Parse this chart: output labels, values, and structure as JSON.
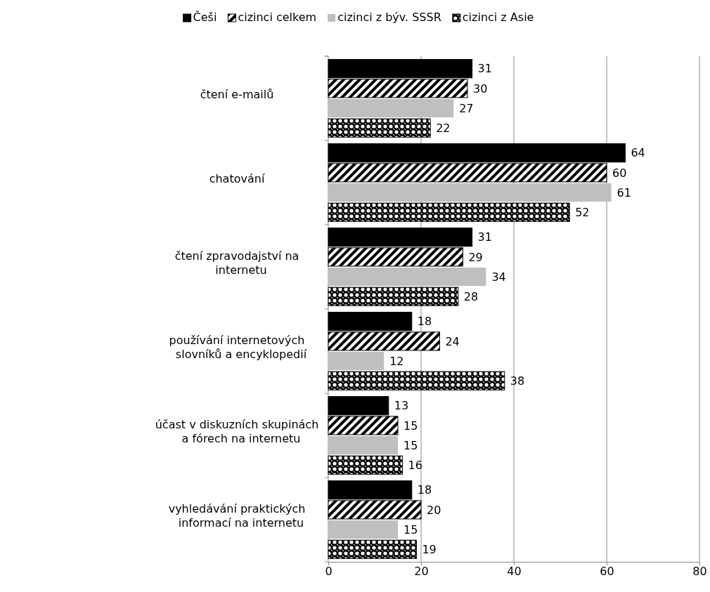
{
  "chart_data": {
    "type": "bar",
    "orientation": "horizontal",
    "categories": [
      "čtení e-mailů",
      "chatování",
      "čtení zpravodajství na internetu",
      "používání internetových slovníků a encyklopedií",
      "účast v diskuzních skupinách a fórech na internetu",
      "vyhledávání praktických informací na internetu"
    ],
    "series": [
      {
        "name": "Češi",
        "color": "#000000",
        "values": [
          31,
          64,
          31,
          18,
          13,
          18
        ]
      },
      {
        "name": "cizinci celkem",
        "color": "#000000",
        "values": [
          30,
          60,
          29,
          24,
          15,
          20
        ]
      },
      {
        "name": "cizinci z býv. SSSR",
        "color": "#bfbfbf",
        "values": [
          27,
          61,
          34,
          12,
          15,
          15
        ]
      },
      {
        "name": "cizinci z Asie",
        "color": "#000000",
        "values": [
          22,
          52,
          28,
          38,
          16,
          19
        ]
      }
    ],
    "xlim": [
      0,
      80
    ],
    "xticks": [
      0,
      20,
      40,
      60,
      80
    ],
    "grid": "x",
    "legend": "top",
    "data_labels": true
  }
}
